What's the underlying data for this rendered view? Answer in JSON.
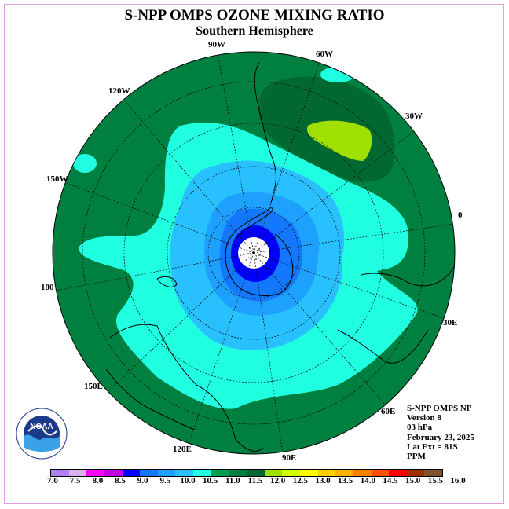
{
  "header": {
    "title": "S-NPP OMPS OZONE MIXING RATIO",
    "subtitle": "Southern Hemisphere"
  },
  "longitude_labels": [
    "90W",
    "60W",
    "120W",
    "30W",
    "150W",
    "0",
    "180",
    "30E",
    "150E",
    "60E",
    "120E",
    "90E"
  ],
  "info": {
    "instrument": "S-NPP OMPS NP",
    "version": "Version 8",
    "level": "03 hPa",
    "date": "February 23, 2025",
    "lat_ext": "Lat Ext = 81S",
    "units": "PPM"
  },
  "colorbar": {
    "colors": [
      "#b080f0",
      "#d8b0f0",
      "#ff00ff",
      "#c000e0",
      "#0000ff",
      "#1478ff",
      "#1ea0ff",
      "#28c0ff",
      "#20ffe0",
      "#00a050",
      "#008040",
      "#006830",
      "#a0e000",
      "#d0ff00",
      "#ffff00",
      "#ffd000",
      "#ffb000",
      "#ff8000",
      "#ff5000",
      "#ff0000",
      "#a03000",
      "#805030"
    ],
    "tick_labels": [
      "7.0",
      "7.5",
      "8.0",
      "8.5",
      "9.0",
      "9.5",
      "10.0",
      "10.5",
      "11.0",
      "11.5",
      "12.0",
      "12.5",
      "13.0",
      "13.5",
      "14.0",
      "14.5",
      "15.0",
      "15.5",
      "16.0"
    ]
  },
  "map_colors": {
    "green_dark": "#006830",
    "green": "#008040",
    "green_mid": "#00a050",
    "aqua": "#20ffe0",
    "sky": "#28c0ff",
    "blue_light": "#1ea0ff",
    "blue": "#1478ff",
    "blue_deep": "#0000ff",
    "lime": "#a0e000"
  },
  "logo": {
    "text": "NOAA"
  }
}
